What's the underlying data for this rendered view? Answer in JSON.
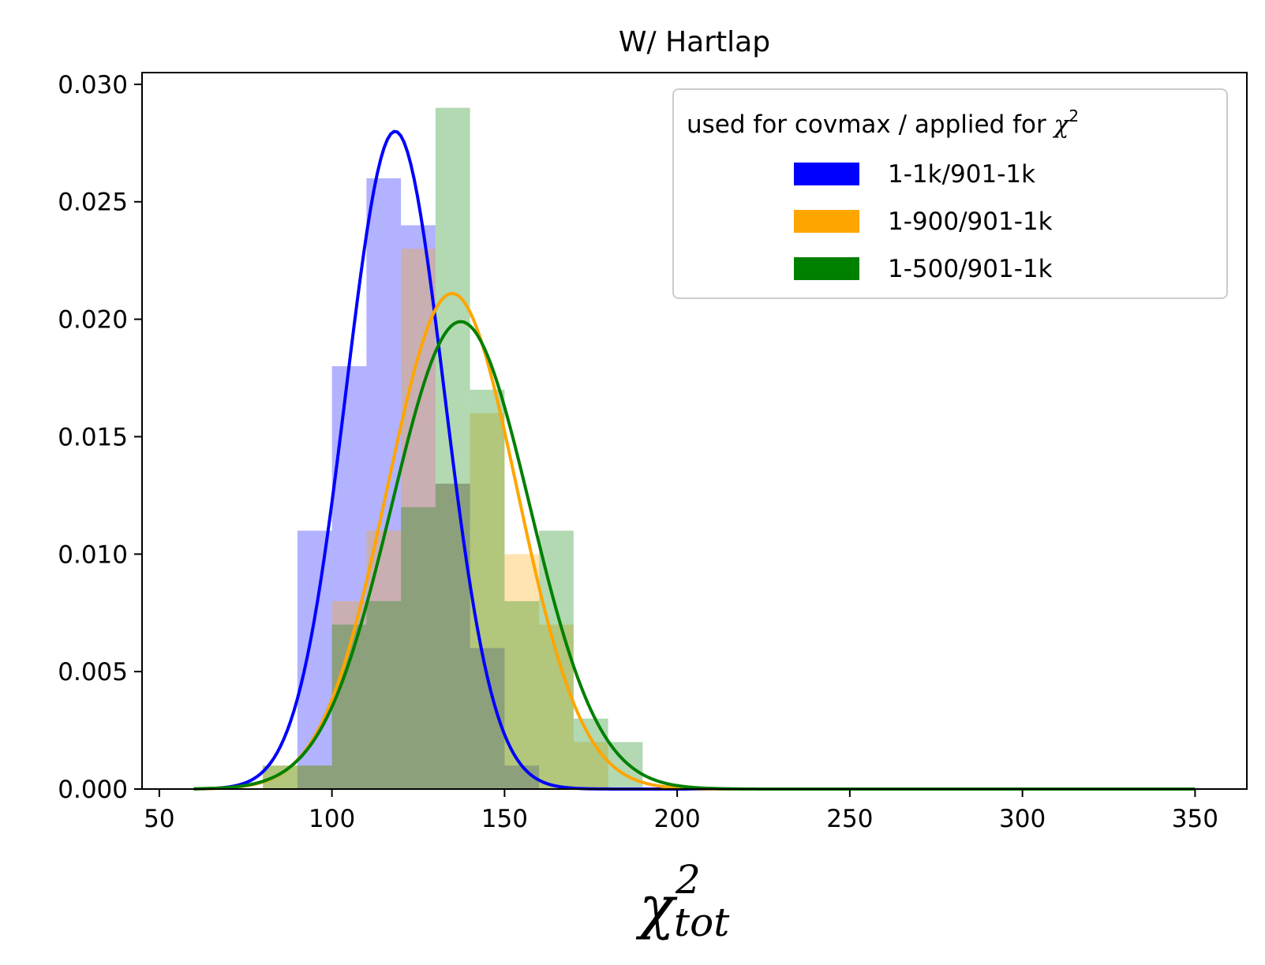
{
  "chart_data": {
    "type": "bar",
    "title": "W/ Hartlap",
    "xlabel": {
      "base": "χ",
      "superscript": "2",
      "subscript": "tot"
    },
    "ylabel": "",
    "xlim": [
      45,
      365
    ],
    "ylim": [
      0,
      0.0305
    ],
    "xticks": [
      50,
      100,
      150,
      200,
      250,
      300,
      350
    ],
    "yticks": [
      0.0,
      0.005,
      0.01,
      0.015,
      0.02,
      0.025,
      0.03
    ],
    "ytick_labels": [
      "0.000",
      "0.005",
      "0.010",
      "0.015",
      "0.020",
      "0.025",
      "0.030"
    ],
    "grid": false,
    "legend": {
      "placement": "top-right",
      "title": {
        "text": "used for covmax / applied for ",
        "symbol": "χ",
        "superscript": "2"
      },
      "entries": [
        {
          "label": "1-1k/901-1k",
          "color": "#0000ff"
        },
        {
          "label": "1-900/901-1k",
          "color": "#ffa500"
        },
        {
          "label": "1-500/901-1k",
          "color": "#008000"
        }
      ]
    },
    "series": [
      {
        "name": "1-1k/901-1k",
        "color": "#0000ff",
        "bar_opacity": 0.3,
        "bin_width": 10,
        "bins": [
          {
            "x0": 90,
            "value": 0.011
          },
          {
            "x0": 100,
            "value": 0.018
          },
          {
            "x0": 110,
            "value": 0.026
          },
          {
            "x0": 120,
            "value": 0.024
          },
          {
            "x0": 130,
            "value": 0.013
          },
          {
            "x0": 140,
            "value": 0.006
          },
          {
            "x0": 150,
            "value": 0.001
          },
          {
            "x0": 160,
            "value": 0.0
          }
        ],
        "curve": {
          "type": "gaussian",
          "mean": 118.3,
          "peak": 0.028,
          "sigma": 14.2,
          "x_range": [
            60,
            350
          ]
        }
      },
      {
        "name": "1-900/901-1k",
        "color": "#ffa500",
        "bar_opacity": 0.3,
        "bin_width": 10,
        "bins": [
          {
            "x0": 80,
            "value": 0.001
          },
          {
            "x0": 90,
            "value": 0.001
          },
          {
            "x0": 100,
            "value": 0.008
          },
          {
            "x0": 110,
            "value": 0.011
          },
          {
            "x0": 120,
            "value": 0.023
          },
          {
            "x0": 130,
            "value": 0.013
          },
          {
            "x0": 140,
            "value": 0.016
          },
          {
            "x0": 150,
            "value": 0.01
          },
          {
            "x0": 160,
            "value": 0.007
          },
          {
            "x0": 170,
            "value": 0.002
          },
          {
            "x0": 180,
            "value": 0.0
          }
        ],
        "curve": {
          "type": "gaussian",
          "mean": 134.8,
          "peak": 0.0211,
          "sigma": 18.8,
          "x_range": [
            60,
            350
          ]
        }
      },
      {
        "name": "1-500/901-1k",
        "color": "#008000",
        "bar_opacity": 0.3,
        "bin_width": 10,
        "bins": [
          {
            "x0": 80,
            "value": 0.001
          },
          {
            "x0": 90,
            "value": 0.001
          },
          {
            "x0": 100,
            "value": 0.007
          },
          {
            "x0": 110,
            "value": 0.008
          },
          {
            "x0": 120,
            "value": 0.012
          },
          {
            "x0": 130,
            "value": 0.029
          },
          {
            "x0": 140,
            "value": 0.017
          },
          {
            "x0": 150,
            "value": 0.008
          },
          {
            "x0": 160,
            "value": 0.011
          },
          {
            "x0": 170,
            "value": 0.003
          },
          {
            "x0": 180,
            "value": 0.002
          }
        ],
        "curve": {
          "type": "gaussian",
          "mean": 137.3,
          "peak": 0.0199,
          "sigma": 20.0,
          "x_range": [
            60,
            350
          ]
        }
      }
    ]
  }
}
